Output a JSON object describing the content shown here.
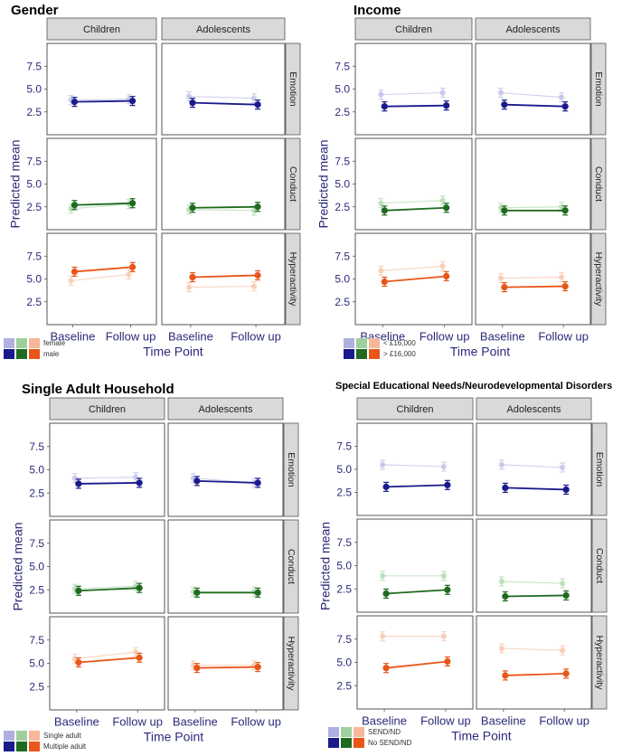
{
  "axis_labels": {
    "ylabel": "Predicted mean",
    "xlabel": "Time Point",
    "x_ticks": [
      "Baseline",
      "Follow up"
    ],
    "y_ticks": [
      "2.5",
      "5.0",
      "7.5"
    ],
    "columns": [
      "Children",
      "Adolescents"
    ],
    "rows": [
      "Emotion",
      "Conduct",
      "Hyperactivity"
    ]
  },
  "colors": {
    "emotion_dark": "#1a1a8c",
    "emotion_light": "#b0b0e0",
    "conduct_dark": "#1f6a1f",
    "conduct_light": "#9ed09e",
    "hyper_dark": "#e8561a",
    "hyper_light": "#f6b898",
    "strip_bg": "#d9d9d9"
  },
  "chart_data": [
    {
      "type": "line",
      "title": "Gender",
      "ylim": [
        0,
        10
      ],
      "x": [
        "Baseline",
        "Follow up"
      ],
      "legend": {
        "light": "female",
        "dark": "male"
      },
      "panels": {
        "Children": {
          "Emotion": {
            "light": [
              3.8,
              3.9
            ],
            "dark": [
              3.6,
              3.7
            ]
          },
          "Conduct": {
            "light": [
              2.3,
              2.8
            ],
            "dark": [
              2.7,
              2.9
            ]
          },
          "Hyperactivity": {
            "light": [
              4.8,
              5.5
            ],
            "dark": [
              5.8,
              6.3
            ]
          }
        },
        "Adolescents": {
          "Emotion": {
            "light": [
              4.2,
              4.0
            ],
            "dark": [
              3.5,
              3.3
            ]
          },
          "Conduct": {
            "light": [
              2.2,
              2.1
            ],
            "dark": [
              2.4,
              2.5
            ]
          },
          "Hyperactivity": {
            "light": [
              4.1,
              4.2
            ],
            "dark": [
              5.2,
              5.4
            ]
          }
        }
      }
    },
    {
      "type": "line",
      "title": "Income",
      "ylim": [
        0,
        10
      ],
      "x": [
        "Baseline",
        "Follow up"
      ],
      "legend": {
        "light": "< £16,000",
        "dark": "> £16,000"
      },
      "panels": {
        "Children": {
          "Emotion": {
            "light": [
              4.4,
              4.6
            ],
            "dark": [
              3.1,
              3.2
            ]
          },
          "Conduct": {
            "light": [
              2.9,
              3.2
            ],
            "dark": [
              2.1,
              2.4
            ]
          },
          "Hyperactivity": {
            "light": [
              5.9,
              6.4
            ],
            "dark": [
              4.7,
              5.3
            ]
          }
        },
        "Adolescents": {
          "Emotion": {
            "light": [
              4.6,
              4.1
            ],
            "dark": [
              3.3,
              3.1
            ]
          },
          "Conduct": {
            "light": [
              2.4,
              2.5
            ],
            "dark": [
              2.1,
              2.1
            ]
          },
          "Hyperactivity": {
            "light": [
              5.1,
              5.2
            ],
            "dark": [
              4.1,
              4.2
            ]
          }
        }
      }
    },
    {
      "type": "line",
      "title": "Single Adult Household",
      "ylim": [
        0,
        10
      ],
      "x": [
        "Baseline",
        "Follow up"
      ],
      "legend": {
        "light": "Single adult",
        "dark": "Multiple adult"
      },
      "panels": {
        "Children": {
          "Emotion": {
            "light": [
              4.1,
              4.2
            ],
            "dark": [
              3.5,
              3.6
            ]
          },
          "Conduct": {
            "light": [
              2.6,
              2.9
            ],
            "dark": [
              2.4,
              2.7
            ]
          },
          "Hyperactivity": {
            "light": [
              5.5,
              6.2
            ],
            "dark": [
              5.1,
              5.6
            ]
          }
        },
        "Adolescents": {
          "Emotion": {
            "light": [
              4.1,
              3.6
            ],
            "dark": [
              3.8,
              3.6
            ]
          },
          "Conduct": {
            "light": [
              2.3,
              2.3
            ],
            "dark": [
              2.2,
              2.2
            ]
          },
          "Hyperactivity": {
            "light": [
              4.8,
              4.8
            ],
            "dark": [
              4.5,
              4.6
            ]
          }
        }
      }
    },
    {
      "type": "line",
      "title": "Special Educational Needs/Neurodevelopmental Disorders",
      "ylim": [
        0,
        10
      ],
      "x": [
        "Baseline",
        "Follow up"
      ],
      "legend": {
        "light": "SEND/ND",
        "dark": "No SEND/ND"
      },
      "panels": {
        "Children": {
          "Emotion": {
            "light": [
              5.5,
              5.3
            ],
            "dark": [
              3.1,
              3.3
            ]
          },
          "Conduct": {
            "light": [
              3.9,
              3.9
            ],
            "dark": [
              2.0,
              2.4
            ]
          },
          "Hyperactivity": {
            "light": [
              7.8,
              7.8
            ],
            "dark": [
              4.4,
              5.1
            ]
          }
        },
        "Adolescents": {
          "Emotion": {
            "light": [
              5.5,
              5.2
            ],
            "dark": [
              3.0,
              2.8
            ]
          },
          "Conduct": {
            "light": [
              3.3,
              3.1
            ],
            "dark": [
              1.7,
              1.8
            ]
          },
          "Hyperactivity": {
            "light": [
              6.5,
              6.3
            ],
            "dark": [
              3.6,
              3.8
            ]
          }
        }
      }
    }
  ]
}
